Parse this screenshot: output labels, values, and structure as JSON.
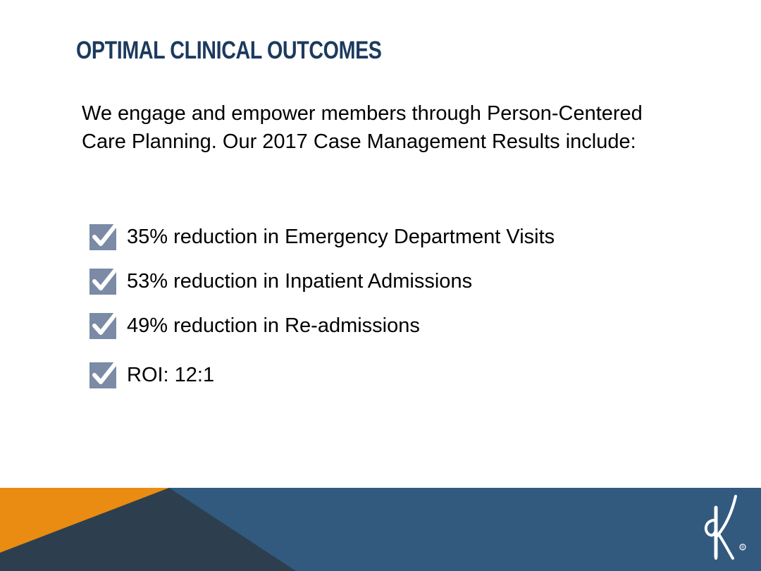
{
  "slide": {
    "title": "OPTIMAL CLINICAL OUTCOMES",
    "intro": "We engage and empower members through Person-Centered Care Planning. Our 2017 Case Management Results include:",
    "bullets": [
      {
        "text": "35% reduction in Emergency Department Visits",
        "icon": "checkbox-checked-icon"
      },
      {
        "text": "53% reduction in Inpatient Admissions",
        "icon": "checkbox-checked-icon"
      },
      {
        "text": "49% reduction in Re-admissions",
        "icon": "checkbox-checked-icon"
      },
      {
        "text": "ROI: 12:1",
        "icon": "checkbox-checked-icon"
      }
    ]
  },
  "colors": {
    "title": "#1c3a5e",
    "checkbox": "#7b8aa5",
    "footer_blue": "#325a7f",
    "footer_dark": "#2d3f4e",
    "footer_orange": "#e98c11"
  },
  "logo": {
    "icon": "company-k-logo-icon",
    "mark": "®"
  }
}
